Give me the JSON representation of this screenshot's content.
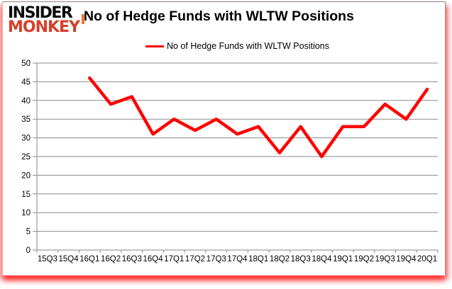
{
  "logo": {
    "line1": "INSIDER",
    "line2": "MONKEY"
  },
  "header": {
    "title": "No of Hedge Funds with WLTW Positions"
  },
  "legend": {
    "label": "No of Hedge Funds with WLTW Positions"
  },
  "chart_data": {
    "type": "line",
    "title": "No of Hedge Funds with WLTW Positions",
    "legend_entries": [
      "No of Hedge Funds with WLTW Positions"
    ],
    "legend_position": "top",
    "categories": [
      "15Q3",
      "15Q4",
      "16Q1",
      "16Q2",
      "16Q3",
      "16Q4",
      "17Q1",
      "17Q2",
      "17Q3",
      "17Q4",
      "18Q1",
      "18Q2",
      "18Q3",
      "18Q4",
      "19Q1",
      "19Q2",
      "19Q3",
      "19Q4",
      "20Q1"
    ],
    "series": [
      {
        "name": "No of Hedge Funds with WLTW Positions",
        "values": [
          null,
          null,
          46,
          39,
          41,
          31,
          35,
          32,
          35,
          31,
          33,
          26,
          33,
          25,
          33,
          33,
          39,
          35,
          43
        ]
      }
    ],
    "xlabel": "",
    "ylabel": "",
    "ylim": [
      0,
      50
    ],
    "ytick_step": 5,
    "yticks": [
      0,
      5,
      10,
      15,
      20,
      25,
      30,
      35,
      40,
      45,
      50
    ],
    "grid": true,
    "line_color": "#ff0000",
    "axis_color": "#8a8a8a",
    "text_color": "#000000"
  }
}
